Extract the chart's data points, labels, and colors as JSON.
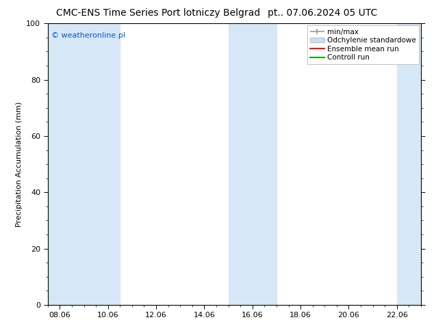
{
  "title_left": "CMC-ENS Time Series Port lotniczy Belgrad",
  "title_right": "pt.. 07.06.2024 05 UTC",
  "ylabel": "Precipitation Accumulation (mm)",
  "watermark": "© weatheronline.pl",
  "watermark_color": "#0055cc",
  "ylim": [
    0,
    100
  ],
  "xlim_start": 7.5,
  "xlim_end": 23.0,
  "xtick_labels": [
    "08.06",
    "10.06",
    "12.06",
    "14.06",
    "16.06",
    "18.06",
    "20.06",
    "22.06"
  ],
  "xtick_positions": [
    8.0,
    10.0,
    12.0,
    14.0,
    16.0,
    18.0,
    20.0,
    22.0
  ],
  "ytick_positions": [
    0,
    20,
    40,
    60,
    80,
    100
  ],
  "background_color": "#ffffff",
  "plot_bg_color": "#ffffff",
  "shaded_bands": [
    {
      "x_start": 7.5,
      "x_end": 9.0,
      "color": "#d6e8f7"
    },
    {
      "x_start": 9.0,
      "x_end": 10.5,
      "color": "#d6e8f7"
    },
    {
      "x_start": 15.0,
      "x_end": 17.0,
      "color": "#d6e8f7"
    },
    {
      "x_start": 22.0,
      "x_end": 23.0,
      "color": "#d6e8f7"
    }
  ],
  "legend_labels": [
    "min/max",
    "Odchylenie standardowe",
    "Ensemble mean run",
    "Controll run"
  ],
  "legend_colors": [
    "#999999",
    "#c8dff0",
    "#ff0000",
    "#00aa00"
  ],
  "title_fontsize": 10,
  "axis_label_fontsize": 8,
  "tick_fontsize": 8,
  "watermark_fontsize": 8,
  "legend_fontsize": 7.5
}
